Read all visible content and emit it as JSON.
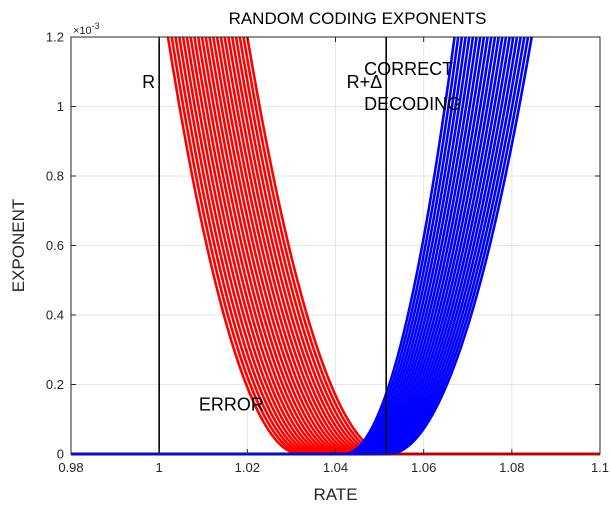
{
  "chart_data": {
    "type": "line",
    "title": "RANDOM CODING EXPONENTS",
    "xlabel": "RATE",
    "ylabel": "EXPONENT",
    "xlim": [
      0.98,
      1.1
    ],
    "ylim": [
      0,
      0.0012
    ],
    "x_ticks": [
      0.98,
      1,
      1.02,
      1.04,
      1.06,
      1.08,
      1.1
    ],
    "x_tick_labels": [
      "0.98",
      "1",
      "1.02",
      "1.04",
      "1.06",
      "1.08",
      "1.1"
    ],
    "y_ticks": [
      0,
      0.0002,
      0.0004,
      0.0006,
      0.0008,
      0.001,
      0.0012
    ],
    "y_tick_labels": [
      "0",
      "0.2",
      "0.4",
      "0.6",
      "0.8",
      "1",
      "1.2"
    ],
    "y_exponent_label": "×10",
    "y_exponent_power": "-3",
    "grid": true,
    "vertical_lines": [
      {
        "x": 1.0,
        "label": "R",
        "color": "#000000"
      },
      {
        "x": 1.0515,
        "label": "R+Δ",
        "color": "#000000"
      }
    ],
    "annotations": [
      {
        "text": "CORRECT",
        "x": 1.0465,
        "y": 0.00109
      },
      {
        "text": "DECODING",
        "x": 1.0465,
        "y": 0.00099
      },
      {
        "text": "ERROR",
        "x": 1.009,
        "y": 0.000125
      }
    ],
    "curve_families": [
      {
        "name": "",
        "color": "#ff0000",
        "kind": "error",
        "count": 22,
        "zero_start": [
          1.032,
          1.052
        ],
        "top_at_ylim": [
          1.002,
          1.02
        ]
      },
      {
        "name": "",
        "color": "#0000ff",
        "kind": "correct",
        "count": 22,
        "zero_start": [
          1.042,
          1.052
        ],
        "top_at_ylim": [
          1.067,
          1.0845
        ]
      }
    ]
  }
}
